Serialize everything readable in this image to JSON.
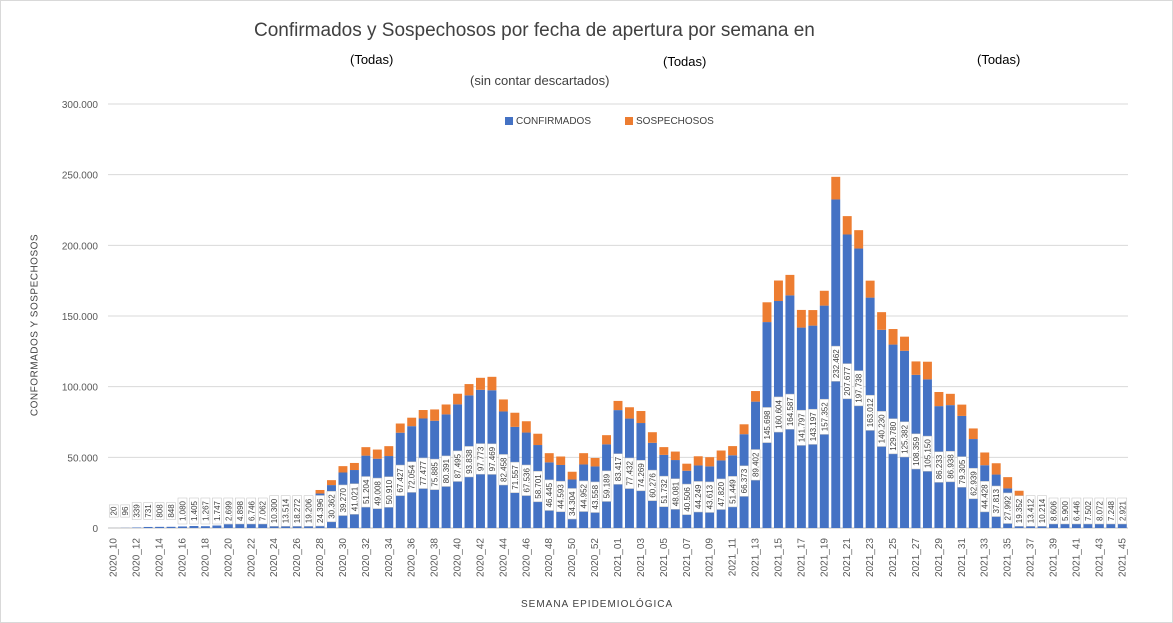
{
  "header": {
    "title": "Confirmados y Sospechosos por fecha de apertura por semana en",
    "filter_1": "(Todas)",
    "filter_2": "(Todas)",
    "filter_3": "(Todas)",
    "note": "(sin contar descartados)"
  },
  "colors": {
    "confirmados": "#4472C4",
    "sospechosos": "#ED7D31",
    "grid": "#d9d9d9"
  },
  "chart_data": {
    "type": "bar",
    "stacked": true,
    "title": "Confirmados y Sospechosos por fecha de apertura por semana en",
    "xlabel": "SEMANA EPIDEMIOLÓGICA",
    "ylabel": "CONFORMADOS Y SOSPECHOSOS",
    "ylim": [
      0,
      300000
    ],
    "yticks": [
      0,
      50000,
      100000,
      150000,
      200000,
      250000,
      300000
    ],
    "ytick_labels": [
      "0",
      "50.000",
      "100.000",
      "150.000",
      "200.000",
      "250.000",
      "300.000"
    ],
    "legend_position": "top-center",
    "categories": [
      "2020_10",
      "2020_11",
      "2020_12",
      "2020_13",
      "2020_14",
      "2020_15",
      "2020_16",
      "2020_17",
      "2020_18",
      "2020_19",
      "2020_20",
      "2020_21",
      "2020_22",
      "2020_23",
      "2020_24",
      "2020_25",
      "2020_26",
      "2020_27",
      "2020_28",
      "2020_29",
      "2020_30",
      "2020_31",
      "2020_32",
      "2020_33",
      "2020_34",
      "2020_35",
      "2020_36",
      "2020_37",
      "2020_38",
      "2020_39",
      "2020_40",
      "2020_41",
      "2020_42",
      "2020_43",
      "2020_44",
      "2020_45",
      "2020_46",
      "2020_47",
      "2020_48",
      "2020_49",
      "2020_50",
      "2020_51",
      "2020_52",
      "2020_53",
      "2021_01",
      "2021_02",
      "2021_03",
      "2021_04",
      "2021_05",
      "2021_06",
      "2021_07",
      "2021_08",
      "2021_09",
      "2021_10",
      "2021_11",
      "2021_12",
      "2021_13",
      "2021_14",
      "2021_15",
      "2021_16",
      "2021_17",
      "2021_18",
      "2021_19",
      "2021_20",
      "2021_21",
      "2021_22",
      "2021_23",
      "2021_24",
      "2021_25",
      "2021_26",
      "2021_27",
      "2021_28",
      "2021_29",
      "2021_30",
      "2021_31",
      "2021_32",
      "2021_33",
      "2021_34",
      "2021_35",
      "2021_36",
      "2021_37",
      "2021_38",
      "2021_39",
      "2021_40",
      "2021_41",
      "2021_42",
      "2021_43",
      "2021_44",
      "2021_45"
    ],
    "tick_labels": [
      "2020_10",
      "",
      "2020_12",
      "",
      "2020_14",
      "",
      "2020_16",
      "",
      "2020_18",
      "",
      "2020_20",
      "",
      "2020_22",
      "",
      "2020_24",
      "",
      "2020_26",
      "",
      "2020_28",
      "",
      "2020_30",
      "",
      "2020_32",
      "",
      "2020_34",
      "",
      "2020_36",
      "",
      "2020_38",
      "",
      "2020_40",
      "",
      "2020_42",
      "",
      "2020_44",
      "",
      "2020_46",
      "",
      "2020_48",
      "",
      "2020_50",
      "",
      "2020_52",
      "",
      "2021_01",
      "",
      "2021_03",
      "",
      "2021_05",
      "",
      "2021_07",
      "",
      "2021_09",
      "",
      "2021_11",
      "",
      "2021_13",
      "",
      "2021_15",
      "",
      "2021_17",
      "",
      "2021_19",
      "",
      "2021_21",
      "",
      "2021_23",
      "",
      "2021_25",
      "",
      "2021_27",
      "",
      "2021_29",
      "",
      "2021_31",
      "",
      "2021_33",
      "",
      "2021_35",
      "",
      "2021_37",
      "",
      "2021_39",
      "",
      "2021_41",
      "",
      "2021_43",
      "",
      "2021_45"
    ],
    "series": [
      {
        "name": "CONFIRMADOS",
        "values": [
          20,
          96,
          339,
          731,
          808,
          848,
          1080,
          1405,
          1267,
          1747,
          2699,
          4898,
          6746,
          7062,
          10300,
          13514,
          18272,
          19206,
          24396,
          30362,
          39270,
          41021,
          51204,
          49008,
          50910,
          67427,
          72054,
          77477,
          75885,
          80391,
          87495,
          93838,
          97773,
          97469,
          82458,
          71557,
          67536,
          58701,
          46445,
          44593,
          34304,
          44952,
          43558,
          59189,
          83417,
          77432,
          74269,
          60276,
          51732,
          48081,
          40506,
          44249,
          43613,
          47820,
          51449,
          66373,
          89402,
          145698,
          160604,
          164587,
          141797,
          143197,
          157352,
          232462,
          207677,
          197738,
          163012,
          140230,
          129780,
          125382,
          108359,
          105150,
          86233,
          86938,
          79305,
          62939,
          44428,
          37813,
          27992,
          19352,
          13412,
          10214,
          8606,
          5900,
          6446,
          7502,
          8072,
          7248,
          2921
        ]
      },
      {
        "name": "SOSPECHOSOS",
        "values": [
          0,
          0,
          0,
          0,
          0,
          0,
          0,
          0,
          0,
          0,
          0,
          0,
          0,
          0,
          0,
          1000,
          1600,
          2000,
          2500,
          3500,
          4500,
          5000,
          6000,
          6500,
          7000,
          6500,
          6000,
          6000,
          8000,
          7000,
          7500,
          8000,
          8500,
          9500,
          8500,
          10000,
          8000,
          8000,
          6500,
          6000,
          5500,
          8000,
          6000,
          6500,
          6500,
          8000,
          8500,
          7500,
          5500,
          6000,
          5000,
          6500,
          6500,
          7000,
          6500,
          7000,
          7500,
          14000,
          14500,
          14500,
          12500,
          11000,
          10500,
          16000,
          13000,
          13000,
          12000,
          12500,
          11000,
          10000,
          9500,
          12500,
          10000,
          8000,
          8000,
          7500,
          9000,
          8000,
          8000,
          7000,
          5500,
          4500,
          3500,
          1900,
          2000,
          3000,
          5000,
          4000,
          1500
        ]
      }
    ],
    "data_labels": [
      "20",
      "96",
      "339",
      "731",
      "808",
      "848",
      "1.080",
      "1.405",
      "1.267",
      "1.747",
      "2.699",
      "4.898",
      "6.746",
      "7.062",
      "10.300",
      "13.514",
      "18.272",
      "19.206",
      "24.396",
      "30.362",
      "39.270",
      "41.021",
      "51.204",
      "49.008",
      "50.910",
      "67.427",
      "72.054",
      "77.477",
      "75.885",
      "80.391",
      "87.495",
      "93.838",
      "97.773",
      "97.469",
      "82.458",
      "71.557",
      "67.536",
      "58.701",
      "46.445",
      "44.593",
      "34.304",
      "44.952",
      "43.558",
      "59.189",
      "83.417",
      "77.432",
      "74.269",
      "60.276",
      "51.732",
      "48.081",
      "40.506",
      "44.249",
      "43.613",
      "47.820",
      "51.449",
      "66.373",
      "89.402",
      "145.698",
      "160.604",
      "164.587",
      "141.797",
      "143.197",
      "157.352",
      "232.462",
      "207.677",
      "197.738",
      "163.012",
      "140.230",
      "129.780",
      "125.382",
      "108.359",
      "105.150",
      "86.233",
      "86.938",
      "79.305",
      "62.939",
      "44.428",
      "37.813",
      "27.992",
      "19.352",
      "13.412",
      "10.214",
      "8.606",
      "5.900",
      "6.446",
      "7.502",
      "8.072",
      "7.248",
      "2.921"
    ]
  }
}
